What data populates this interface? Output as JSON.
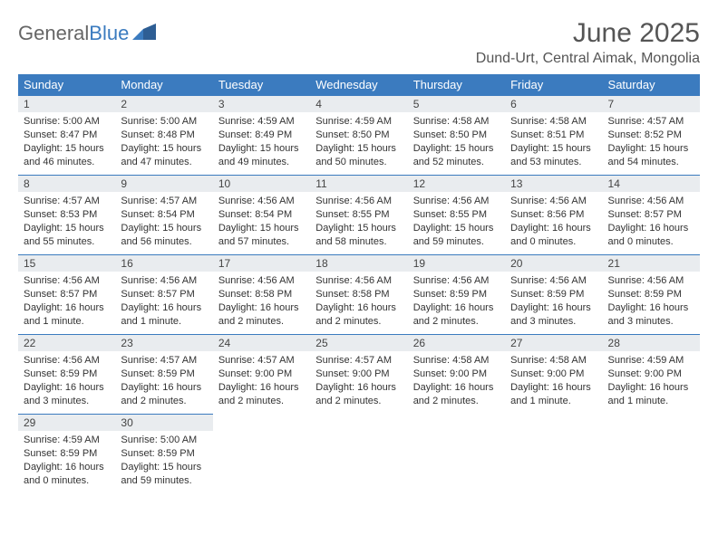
{
  "logo": {
    "text_general": "General",
    "text_blue": "Blue"
  },
  "header": {
    "title": "June 2025",
    "location": "Dund-Urt, Central Aimak, Mongolia"
  },
  "weekdays": [
    "Sunday",
    "Monday",
    "Tuesday",
    "Wednesday",
    "Thursday",
    "Friday",
    "Saturday"
  ],
  "colors": {
    "header_bg": "#3b7bbf",
    "header_text": "#ffffff",
    "daynum_bg": "#e9ecef",
    "daynum_border": "#3b7bbf",
    "body_text": "#333333",
    "page_bg": "#ffffff"
  },
  "days": [
    {
      "n": 1,
      "sunrise": "5:00 AM",
      "sunset": "8:47 PM",
      "daylight": "15 hours and 46 minutes."
    },
    {
      "n": 2,
      "sunrise": "5:00 AM",
      "sunset": "8:48 PM",
      "daylight": "15 hours and 47 minutes."
    },
    {
      "n": 3,
      "sunrise": "4:59 AM",
      "sunset": "8:49 PM",
      "daylight": "15 hours and 49 minutes."
    },
    {
      "n": 4,
      "sunrise": "4:59 AM",
      "sunset": "8:50 PM",
      "daylight": "15 hours and 50 minutes."
    },
    {
      "n": 5,
      "sunrise": "4:58 AM",
      "sunset": "8:50 PM",
      "daylight": "15 hours and 52 minutes."
    },
    {
      "n": 6,
      "sunrise": "4:58 AM",
      "sunset": "8:51 PM",
      "daylight": "15 hours and 53 minutes."
    },
    {
      "n": 7,
      "sunrise": "4:57 AM",
      "sunset": "8:52 PM",
      "daylight": "15 hours and 54 minutes."
    },
    {
      "n": 8,
      "sunrise": "4:57 AM",
      "sunset": "8:53 PM",
      "daylight": "15 hours and 55 minutes."
    },
    {
      "n": 9,
      "sunrise": "4:57 AM",
      "sunset": "8:54 PM",
      "daylight": "15 hours and 56 minutes."
    },
    {
      "n": 10,
      "sunrise": "4:56 AM",
      "sunset": "8:54 PM",
      "daylight": "15 hours and 57 minutes."
    },
    {
      "n": 11,
      "sunrise": "4:56 AM",
      "sunset": "8:55 PM",
      "daylight": "15 hours and 58 minutes."
    },
    {
      "n": 12,
      "sunrise": "4:56 AM",
      "sunset": "8:55 PM",
      "daylight": "15 hours and 59 minutes."
    },
    {
      "n": 13,
      "sunrise": "4:56 AM",
      "sunset": "8:56 PM",
      "daylight": "16 hours and 0 minutes."
    },
    {
      "n": 14,
      "sunrise": "4:56 AM",
      "sunset": "8:57 PM",
      "daylight": "16 hours and 0 minutes."
    },
    {
      "n": 15,
      "sunrise": "4:56 AM",
      "sunset": "8:57 PM",
      "daylight": "16 hours and 1 minute."
    },
    {
      "n": 16,
      "sunrise": "4:56 AM",
      "sunset": "8:57 PM",
      "daylight": "16 hours and 1 minute."
    },
    {
      "n": 17,
      "sunrise": "4:56 AM",
      "sunset": "8:58 PM",
      "daylight": "16 hours and 2 minutes."
    },
    {
      "n": 18,
      "sunrise": "4:56 AM",
      "sunset": "8:58 PM",
      "daylight": "16 hours and 2 minutes."
    },
    {
      "n": 19,
      "sunrise": "4:56 AM",
      "sunset": "8:59 PM",
      "daylight": "16 hours and 2 minutes."
    },
    {
      "n": 20,
      "sunrise": "4:56 AM",
      "sunset": "8:59 PM",
      "daylight": "16 hours and 3 minutes."
    },
    {
      "n": 21,
      "sunrise": "4:56 AM",
      "sunset": "8:59 PM",
      "daylight": "16 hours and 3 minutes."
    },
    {
      "n": 22,
      "sunrise": "4:56 AM",
      "sunset": "8:59 PM",
      "daylight": "16 hours and 3 minutes."
    },
    {
      "n": 23,
      "sunrise": "4:57 AM",
      "sunset": "8:59 PM",
      "daylight": "16 hours and 2 minutes."
    },
    {
      "n": 24,
      "sunrise": "4:57 AM",
      "sunset": "9:00 PM",
      "daylight": "16 hours and 2 minutes."
    },
    {
      "n": 25,
      "sunrise": "4:57 AM",
      "sunset": "9:00 PM",
      "daylight": "16 hours and 2 minutes."
    },
    {
      "n": 26,
      "sunrise": "4:58 AM",
      "sunset": "9:00 PM",
      "daylight": "16 hours and 2 minutes."
    },
    {
      "n": 27,
      "sunrise": "4:58 AM",
      "sunset": "9:00 PM",
      "daylight": "16 hours and 1 minute."
    },
    {
      "n": 28,
      "sunrise": "4:59 AM",
      "sunset": "9:00 PM",
      "daylight": "16 hours and 1 minute."
    },
    {
      "n": 29,
      "sunrise": "4:59 AM",
      "sunset": "8:59 PM",
      "daylight": "16 hours and 0 minutes."
    },
    {
      "n": 30,
      "sunrise": "5:00 AM",
      "sunset": "8:59 PM",
      "daylight": "15 hours and 59 minutes."
    }
  ],
  "labels": {
    "sunrise_prefix": "Sunrise: ",
    "sunset_prefix": "Sunset: ",
    "daylight_prefix": "Daylight: "
  },
  "layout": {
    "first_weekday_index": 0,
    "rows": 5,
    "cols": 7
  }
}
